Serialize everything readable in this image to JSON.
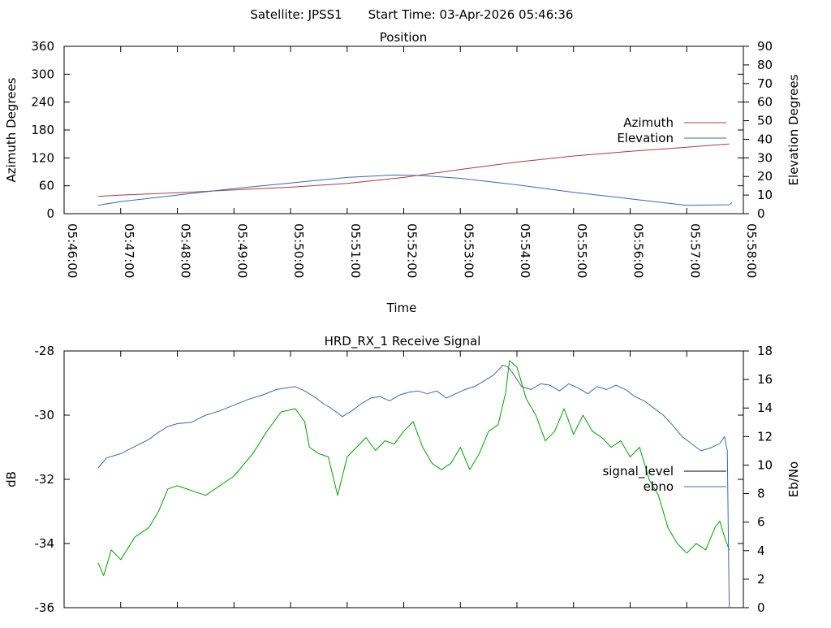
{
  "header": {
    "satellite": "Satellite: JPSS1",
    "start_time": "Start Time: 03-Apr-2026 05:46:36"
  },
  "colors": {
    "azimuth": "#b03a3a",
    "elevation": "#3a6aa8",
    "signal_level": "#00a000",
    "ebno": "#3a6aa8",
    "legend_signal_level": "#000000"
  },
  "chart_data": [
    {
      "type": "line",
      "title": "Position",
      "xlabel": "Time",
      "ylabel": "Azimuth Degrees",
      "y2label": "Elevation Degrees",
      "xlim": [
        0,
        720
      ],
      "ylim": [
        0,
        360
      ],
      "y2lim": [
        0,
        90
      ],
      "x_tick_labels": [
        "05:46:00",
        "05:47:00",
        "05:48:00",
        "05:49:00",
        "05:50:00",
        "05:51:00",
        "05:52:00",
        "05:53:00",
        "05:54:00",
        "05:55:00",
        "05:56:00",
        "05:57:00",
        "05:58:00"
      ],
      "y_ticks": [
        "0",
        "60",
        "120",
        "180",
        "240",
        "300",
        "360"
      ],
      "y2_ticks": [
        "0",
        "10",
        "20",
        "30",
        "40",
        "50",
        "60",
        "70",
        "80",
        "90"
      ],
      "legend_position": "right",
      "series": [
        {
          "name": "Azimuth",
          "axis": "y",
          "x": [
            36,
            60,
            120,
            180,
            240,
            300,
            360,
            420,
            480,
            540,
            600,
            660,
            685,
            705
          ],
          "y": [
            37,
            40,
            45,
            51,
            57,
            65,
            78,
            95,
            111,
            124,
            134,
            143,
            147,
            150
          ]
        },
        {
          "name": "Elevation",
          "axis": "y2",
          "x": [
            36,
            60,
            120,
            180,
            240,
            300,
            350,
            380,
            420,
            480,
            540,
            600,
            660,
            705,
            708
          ],
          "y": [
            4.5,
            6.5,
            10,
            13.5,
            16.5,
            19.5,
            20.8,
            20.5,
            19,
            15.5,
            11.5,
            8,
            4.5,
            4.8,
            6
          ]
        }
      ]
    },
    {
      "type": "line",
      "title": "HRD_RX_1 Receive Signal",
      "xlabel": "",
      "ylabel": "dB",
      "y2label": "Eb/No",
      "xlim": [
        0,
        720
      ],
      "ylim": [
        -36,
        -28
      ],
      "y2lim": [
        0,
        18
      ],
      "y_ticks": [
        "-28",
        "-30",
        "-32",
        "-34",
        "-36"
      ],
      "y2_ticks": [
        "0",
        "2",
        "4",
        "6",
        "8",
        "10",
        "12",
        "14",
        "16",
        "18"
      ],
      "legend_position": "right",
      "series": [
        {
          "name": "signal_level",
          "axis": "y",
          "x": [
            36,
            42,
            50,
            60,
            75,
            90,
            100,
            110,
            120,
            150,
            180,
            200,
            215,
            230,
            245,
            255,
            260,
            270,
            280,
            290,
            300,
            310,
            320,
            330,
            340,
            350,
            360,
            370,
            380,
            390,
            400,
            410,
            420,
            430,
            440,
            450,
            460,
            468,
            472,
            480,
            490,
            500,
            510,
            520,
            530,
            540,
            550,
            560,
            570,
            580,
            590,
            600,
            610,
            620,
            630,
            640,
            650,
            660,
            670,
            680,
            690,
            695,
            700,
            705
          ],
          "y": [
            -34.6,
            -35.0,
            -34.2,
            -34.5,
            -33.8,
            -33.5,
            -33.0,
            -32.3,
            -32.2,
            -32.5,
            -31.9,
            -31.2,
            -30.5,
            -29.9,
            -29.8,
            -30.2,
            -31.0,
            -31.2,
            -31.3,
            -32.5,
            -31.3,
            -31.0,
            -30.7,
            -31.1,
            -30.8,
            -30.9,
            -30.5,
            -30.2,
            -31.0,
            -31.5,
            -31.7,
            -31.5,
            -31.0,
            -31.7,
            -31.2,
            -30.5,
            -30.3,
            -29.3,
            -28.3,
            -28.5,
            -29.5,
            -30.0,
            -30.8,
            -30.5,
            -29.8,
            -30.6,
            -30.0,
            -30.5,
            -30.7,
            -31.0,
            -30.8,
            -31.3,
            -31.0,
            -32.0,
            -32.5,
            -33.5,
            -34.0,
            -34.3,
            -34.0,
            -34.2,
            -33.5,
            -33.3,
            -33.8,
            -34.2
          ]
        },
        {
          "name": "ebno",
          "axis": "y2",
          "x": [
            36,
            45,
            60,
            75,
            90,
            100,
            110,
            120,
            135,
            150,
            165,
            180,
            195,
            210,
            225,
            235,
            245,
            255,
            265,
            275,
            285,
            295,
            305,
            315,
            325,
            335,
            345,
            355,
            365,
            375,
            385,
            395,
            405,
            415,
            425,
            435,
            445,
            455,
            465,
            470,
            475,
            485,
            495,
            505,
            515,
            525,
            535,
            545,
            555,
            565,
            575,
            585,
            595,
            605,
            615,
            625,
            635,
            645,
            655,
            665,
            675,
            685,
            695,
            700,
            703,
            705
          ],
          "y": [
            9.8,
            10.5,
            10.8,
            11.3,
            11.8,
            12.3,
            12.7,
            12.9,
            13.0,
            13.5,
            13.8,
            14.2,
            14.6,
            14.9,
            15.3,
            15.4,
            15.5,
            15.2,
            14.8,
            14.3,
            13.9,
            13.4,
            13.8,
            14.3,
            14.7,
            14.8,
            14.5,
            14.9,
            15.1,
            15.2,
            15.0,
            15.2,
            14.7,
            15.0,
            15.3,
            15.5,
            15.9,
            16.3,
            17.0,
            16.9,
            16.5,
            15.5,
            15.3,
            15.7,
            15.6,
            15.2,
            15.7,
            15.4,
            15.0,
            15.5,
            15.3,
            15.6,
            15.3,
            14.8,
            14.5,
            14.0,
            13.5,
            12.8,
            12.0,
            11.5,
            11.0,
            11.2,
            11.5,
            12.0,
            11.0,
            0
          ]
        }
      ]
    }
  ]
}
